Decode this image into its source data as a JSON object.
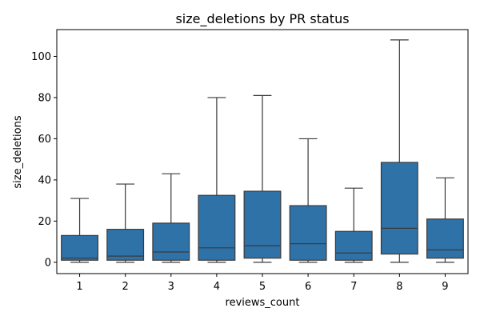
{
  "chart_data": {
    "type": "box",
    "title": "size_deletions by PR status",
    "xlabel": "reviews_count",
    "ylabel": "size_deletions",
    "categories": [
      "1",
      "2",
      "3",
      "4",
      "5",
      "6",
      "7",
      "8",
      "9"
    ],
    "ylim": [
      -5.5,
      113
    ],
    "yticks": [
      0,
      20,
      40,
      60,
      80,
      100
    ],
    "grid": false,
    "box_color": "#2f72a8",
    "line_color": "#3a3a3a",
    "boxes": [
      {
        "category": "1",
        "whisker_low": 0,
        "q1": 1,
        "median": 2,
        "q3": 13,
        "whisker_high": 31
      },
      {
        "category": "2",
        "whisker_low": 0,
        "q1": 1,
        "median": 3,
        "q3": 16,
        "whisker_high": 38
      },
      {
        "category": "3",
        "whisker_low": 0,
        "q1": 1,
        "median": 5,
        "q3": 19,
        "whisker_high": 43
      },
      {
        "category": "4",
        "whisker_low": 0,
        "q1": 1,
        "median": 7,
        "q3": 32.5,
        "whisker_high": 80
      },
      {
        "category": "5",
        "whisker_low": 0,
        "q1": 2,
        "median": 8,
        "q3": 34.5,
        "whisker_high": 81
      },
      {
        "category": "6",
        "whisker_low": 0,
        "q1": 1,
        "median": 9,
        "q3": 27.5,
        "whisker_high": 60
      },
      {
        "category": "7",
        "whisker_low": 0,
        "q1": 1,
        "median": 4.5,
        "q3": 15,
        "whisker_high": 36
      },
      {
        "category": "8",
        "whisker_low": 0,
        "q1": 4,
        "median": 16.5,
        "q3": 48.5,
        "whisker_high": 108
      },
      {
        "category": "9",
        "whisker_low": 0,
        "q1": 2,
        "median": 6,
        "q3": 21,
        "whisker_high": 41
      }
    ]
  }
}
